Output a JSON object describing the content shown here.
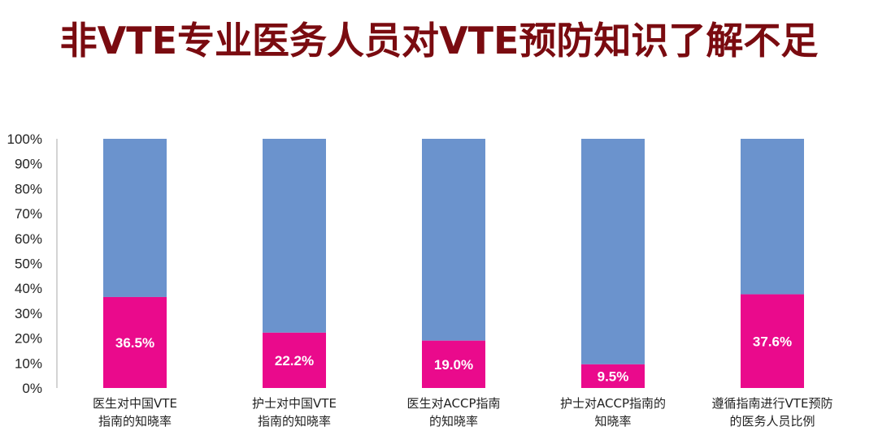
{
  "title": "非VTE专业医务人员对VTE预防知识了解不足",
  "colors": {
    "title": "#7a0b10",
    "top": "#6b93cd",
    "bottom": "#ea0a8c",
    "axis": "#aaaaaa"
  },
  "chart_data": {
    "type": "bar",
    "stacked": true,
    "percent": true,
    "categories": [
      [
        "医生对中国VTE",
        "指南的知晓率"
      ],
      [
        "护士对中国VTE",
        "指南的知晓率"
      ],
      [
        "医生对ACCP指南",
        "的知晓率"
      ],
      [
        "护士对ACCP指南的",
        "知晓率"
      ],
      [
        "遵循指南进行VTE预防",
        "的医务人员比例"
      ]
    ],
    "values": [
      36.5,
      22.2,
      19.0,
      9.5,
      37.6
    ],
    "data_labels": [
      "36.5%",
      "22.2%",
      "19.0%",
      "9.5%",
      "37.6%"
    ],
    "yticks": [
      "0%",
      "10%",
      "20%",
      "30%",
      "40%",
      "50%",
      "60%",
      "70%",
      "80%",
      "90%",
      "100%"
    ],
    "ylim": [
      0,
      100
    ],
    "grid": false,
    "legend": "none"
  }
}
